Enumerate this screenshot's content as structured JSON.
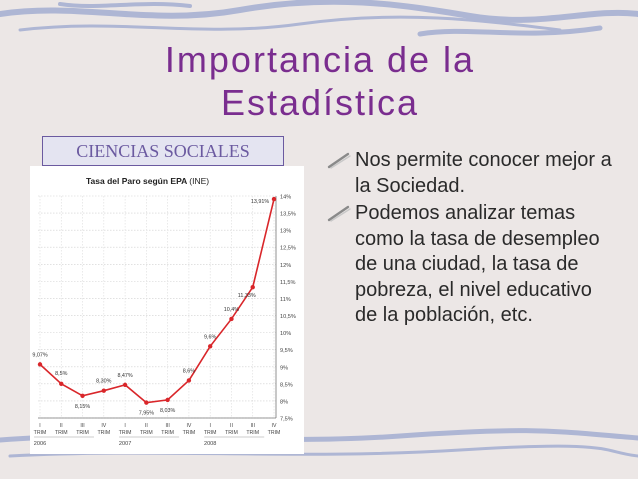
{
  "slide": {
    "title_line1": "Importancia de la",
    "title_line2": "Estadística",
    "category_label": "CIENCIAS SOCIALES",
    "bullets": [
      "Nos permite conocer mejor a la Sociedad.",
      "Podemos analizar temas como la tasa de desempleo de una ciudad, la tasa de pobreza, el nivel educativo de la población, etc."
    ],
    "colors": {
      "title": "#7a2d8f",
      "label": "#6b5aa0",
      "line": "#d9262a"
    }
  },
  "chart_data": {
    "type": "line",
    "title": "Tasa del Paro según EPA",
    "title_suffix": "(INE)",
    "categories": [
      "I TRIM",
      "II TRIM",
      "III TRIM",
      "IV TRIM",
      "I TRIM",
      "II TRIM",
      "III TRIM",
      "IV TRIM",
      "I TRIM",
      "II TRIM",
      "III TRIM",
      "IV TRIM"
    ],
    "x_tick_top": [
      "I",
      "II",
      "III",
      "IV",
      "I",
      "II",
      "III",
      "IV",
      "I",
      "II",
      "III",
      "IV"
    ],
    "x_tick_bottom": [
      "TRIM",
      "TRIM",
      "TRIM",
      "TRIM",
      "TRIM",
      "TRIM",
      "TRIM",
      "TRIM",
      "TRIM",
      "TRIM",
      "TRIM",
      "TRIM"
    ],
    "years": [
      {
        "label": "2006",
        "start_index": 0
      },
      {
        "label": "2007",
        "start_index": 4
      },
      {
        "label": "2008",
        "start_index": 8
      }
    ],
    "series": [
      {
        "values": [
          9.07,
          8.5,
          8.15,
          8.3,
          8.47,
          7.95,
          8.03,
          8.6,
          9.6,
          10.4,
          11.33,
          13.91
        ],
        "labels": [
          "9,07%",
          "8,5%",
          "8,15%",
          "8,30%",
          "8,47%",
          "7,95%",
          "8,03%",
          "8,6%",
          "9,6%",
          "10,4%",
          "11,33%",
          "13,91%"
        ]
      }
    ],
    "ylim": [
      7.5,
      14
    ],
    "y_ticks": [
      7.5,
      8,
      8.5,
      9,
      9.5,
      10,
      10.5,
      11,
      11.5,
      12,
      12.5,
      13,
      13.5,
      14
    ],
    "y_tick_labels": [
      "7,5%",
      "8%",
      "8,5%",
      "9%",
      "9,5%",
      "10%",
      "10,5%",
      "11%",
      "11,5%",
      "12%",
      "12,5%",
      "13%",
      "13,5%",
      "14%"
    ],
    "y_axis_side": "right",
    "grid": true
  }
}
